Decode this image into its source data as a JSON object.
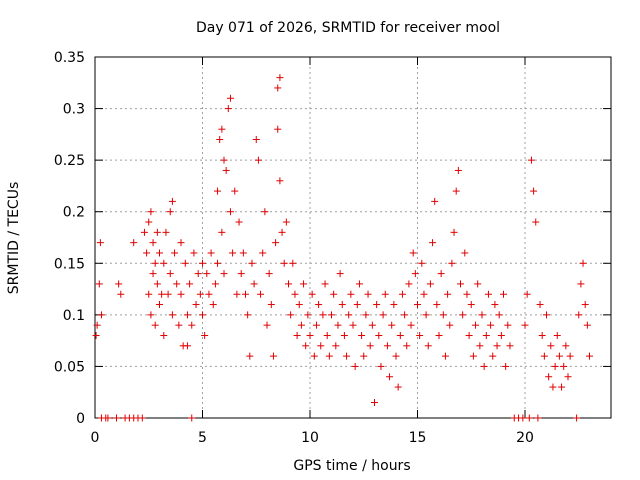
{
  "chart_data": {
    "type": "scatter",
    "title": "Day 071 of 2026, SRMTID for receiver mool",
    "xlabel": "GPS time / hours",
    "ylabel": "SRMTID / TECUs",
    "xlim": [
      0,
      24
    ],
    "ylim": [
      0,
      0.35
    ],
    "xticks": [
      0,
      5,
      10,
      15,
      20
    ],
    "xtick_labels": [
      "0",
      "5",
      "10",
      "15",
      "20"
    ],
    "yticks": [
      0,
      0.05,
      0.1,
      0.15,
      0.2,
      0.25,
      0.3,
      0.35
    ],
    "ytick_labels": [
      "0",
      "0.05",
      "0.1",
      "0.15",
      "0.2",
      "0.25",
      "0.3",
      "0.35"
    ],
    "grid": true,
    "marker": "+",
    "color": "#e00000",
    "series": [
      {
        "name": "SRMTID",
        "points": [
          [
            0.05,
            0.08
          ],
          [
            0.1,
            0.09
          ],
          [
            0.2,
            0.13
          ],
          [
            0.25,
            0.17
          ],
          [
            0.3,
            0.1
          ],
          [
            0.3,
            0.0
          ],
          [
            0.5,
            0.0
          ],
          [
            0.6,
            0.0
          ],
          [
            1.0,
            0.0
          ],
          [
            1.1,
            0.13
          ],
          [
            1.2,
            0.12
          ],
          [
            1.4,
            0.0
          ],
          [
            1.6,
            0.0
          ],
          [
            1.8,
            0.0
          ],
          [
            1.8,
            0.17
          ],
          [
            2.0,
            0.0
          ],
          [
            2.2,
            0.0
          ],
          [
            2.3,
            0.18
          ],
          [
            2.4,
            0.16
          ],
          [
            2.5,
            0.19
          ],
          [
            2.5,
            0.12
          ],
          [
            2.6,
            0.2
          ],
          [
            2.6,
            0.1
          ],
          [
            2.7,
            0.17
          ],
          [
            2.7,
            0.14
          ],
          [
            2.8,
            0.15
          ],
          [
            2.8,
            0.09
          ],
          [
            2.9,
            0.18
          ],
          [
            2.9,
            0.13
          ],
          [
            3.0,
            0.16
          ],
          [
            3.0,
            0.11
          ],
          [
            3.1,
            0.12
          ],
          [
            3.2,
            0.15
          ],
          [
            3.2,
            0.08
          ],
          [
            3.3,
            0.18
          ],
          [
            3.4,
            0.12
          ],
          [
            3.5,
            0.2
          ],
          [
            3.5,
            0.14
          ],
          [
            3.6,
            0.21
          ],
          [
            3.6,
            0.1
          ],
          [
            3.7,
            0.16
          ],
          [
            3.8,
            0.13
          ],
          [
            3.9,
            0.09
          ],
          [
            4.0,
            0.17
          ],
          [
            4.0,
            0.12
          ],
          [
            4.1,
            0.07
          ],
          [
            4.2,
            0.15
          ],
          [
            4.3,
            0.1
          ],
          [
            4.3,
            0.07
          ],
          [
            4.4,
            0.13
          ],
          [
            4.5,
            0.09
          ],
          [
            4.5,
            0.0
          ],
          [
            4.6,
            0.16
          ],
          [
            4.7,
            0.11
          ],
          [
            4.8,
            0.14
          ],
          [
            4.9,
            0.12
          ],
          [
            5.0,
            0.15
          ],
          [
            5.0,
            0.1
          ],
          [
            5.1,
            0.08
          ],
          [
            5.2,
            0.14
          ],
          [
            5.3,
            0.12
          ],
          [
            5.4,
            0.16
          ],
          [
            5.5,
            0.11
          ],
          [
            5.6,
            0.13
          ],
          [
            5.7,
            0.15
          ],
          [
            5.7,
            0.22
          ],
          [
            5.8,
            0.27
          ],
          [
            5.9,
            0.28
          ],
          [
            5.9,
            0.18
          ],
          [
            6.0,
            0.25
          ],
          [
            6.0,
            0.14
          ],
          [
            6.1,
            0.24
          ],
          [
            6.2,
            0.3
          ],
          [
            6.3,
            0.31
          ],
          [
            6.3,
            0.2
          ],
          [
            6.4,
            0.16
          ],
          [
            6.5,
            0.22
          ],
          [
            6.6,
            0.12
          ],
          [
            6.7,
            0.19
          ],
          [
            6.8,
            0.14
          ],
          [
            6.9,
            0.16
          ],
          [
            7.0,
            0.12
          ],
          [
            7.1,
            0.1
          ],
          [
            7.2,
            0.06
          ],
          [
            7.3,
            0.15
          ],
          [
            7.4,
            0.13
          ],
          [
            7.5,
            0.27
          ],
          [
            7.6,
            0.25
          ],
          [
            7.7,
            0.12
          ],
          [
            7.8,
            0.16
          ],
          [
            7.9,
            0.2
          ],
          [
            8.0,
            0.09
          ],
          [
            8.1,
            0.14
          ],
          [
            8.2,
            0.11
          ],
          [
            8.3,
            0.06
          ],
          [
            8.4,
            0.17
          ],
          [
            8.5,
            0.28
          ],
          [
            8.5,
            0.32
          ],
          [
            8.6,
            0.33
          ],
          [
            8.6,
            0.23
          ],
          [
            8.7,
            0.18
          ],
          [
            8.8,
            0.15
          ],
          [
            8.9,
            0.19
          ],
          [
            9.0,
            0.13
          ],
          [
            9.1,
            0.1
          ],
          [
            9.2,
            0.15
          ],
          [
            9.3,
            0.12
          ],
          [
            9.4,
            0.08
          ],
          [
            9.5,
            0.11
          ],
          [
            9.6,
            0.09
          ],
          [
            9.7,
            0.13
          ],
          [
            9.8,
            0.07
          ],
          [
            9.9,
            0.1
          ],
          [
            10.0,
            0.08
          ],
          [
            10.1,
            0.12
          ],
          [
            10.2,
            0.06
          ],
          [
            10.3,
            0.09
          ],
          [
            10.4,
            0.11
          ],
          [
            10.5,
            0.07
          ],
          [
            10.6,
            0.1
          ],
          [
            10.7,
            0.13
          ],
          [
            10.8,
            0.08
          ],
          [
            10.9,
            0.06
          ],
          [
            11.0,
            0.1
          ],
          [
            11.1,
            0.12
          ],
          [
            11.2,
            0.07
          ],
          [
            11.3,
            0.09
          ],
          [
            11.4,
            0.14
          ],
          [
            11.5,
            0.11
          ],
          [
            11.6,
            0.08
          ],
          [
            11.7,
            0.06
          ],
          [
            11.8,
            0.1
          ],
          [
            11.9,
            0.12
          ],
          [
            12.0,
            0.09
          ],
          [
            12.1,
            0.05
          ],
          [
            12.2,
            0.11
          ],
          [
            12.3,
            0.13
          ],
          [
            12.4,
            0.08
          ],
          [
            12.5,
            0.06
          ],
          [
            12.6,
            0.1
          ],
          [
            12.7,
            0.12
          ],
          [
            12.8,
            0.07
          ],
          [
            12.9,
            0.09
          ],
          [
            13.0,
            0.015
          ],
          [
            13.1,
            0.11
          ],
          [
            13.2,
            0.08
          ],
          [
            13.3,
            0.05
          ],
          [
            13.4,
            0.1
          ],
          [
            13.5,
            0.12
          ],
          [
            13.6,
            0.07
          ],
          [
            13.7,
            0.04
          ],
          [
            13.8,
            0.09
          ],
          [
            13.9,
            0.11
          ],
          [
            14.0,
            0.06
          ],
          [
            14.1,
            0.03
          ],
          [
            14.2,
            0.08
          ],
          [
            14.3,
            0.12
          ],
          [
            14.4,
            0.1
          ],
          [
            14.5,
            0.07
          ],
          [
            14.6,
            0.13
          ],
          [
            14.7,
            0.09
          ],
          [
            14.8,
            0.16
          ],
          [
            14.9,
            0.14
          ],
          [
            15.0,
            0.11
          ],
          [
            15.1,
            0.08
          ],
          [
            15.2,
            0.15
          ],
          [
            15.3,
            0.12
          ],
          [
            15.4,
            0.1
          ],
          [
            15.5,
            0.07
          ],
          [
            15.6,
            0.13
          ],
          [
            15.7,
            0.17
          ],
          [
            15.8,
            0.21
          ],
          [
            15.9,
            0.11
          ],
          [
            16.0,
            0.08
          ],
          [
            16.1,
            0.14
          ],
          [
            16.2,
            0.1
          ],
          [
            16.3,
            0.06
          ],
          [
            16.4,
            0.12
          ],
          [
            16.5,
            0.09
          ],
          [
            16.6,
            0.15
          ],
          [
            16.7,
            0.18
          ],
          [
            16.8,
            0.22
          ],
          [
            16.9,
            0.24
          ],
          [
            17.0,
            0.13
          ],
          [
            17.1,
            0.1
          ],
          [
            17.2,
            0.16
          ],
          [
            17.3,
            0.12
          ],
          [
            17.4,
            0.08
          ],
          [
            17.5,
            0.11
          ],
          [
            17.6,
            0.06
          ],
          [
            17.7,
            0.09
          ],
          [
            17.8,
            0.13
          ],
          [
            17.9,
            0.07
          ],
          [
            18.0,
            0.1
          ],
          [
            18.1,
            0.05
          ],
          [
            18.2,
            0.08
          ],
          [
            18.3,
            0.12
          ],
          [
            18.4,
            0.09
          ],
          [
            18.5,
            0.06
          ],
          [
            18.6,
            0.11
          ],
          [
            18.7,
            0.07
          ],
          [
            18.8,
            0.1
          ],
          [
            18.9,
            0.08
          ],
          [
            19.0,
            0.12
          ],
          [
            19.1,
            0.05
          ],
          [
            19.2,
            0.09
          ],
          [
            19.3,
            0.07
          ],
          [
            19.5,
            0.0
          ],
          [
            19.7,
            0.0
          ],
          [
            19.9,
            0.0
          ],
          [
            20.0,
            0.09
          ],
          [
            20.1,
            0.12
          ],
          [
            20.2,
            0.0
          ],
          [
            20.3,
            0.25
          ],
          [
            20.4,
            0.22
          ],
          [
            20.5,
            0.19
          ],
          [
            20.6,
            0.0
          ],
          [
            20.7,
            0.11
          ],
          [
            20.8,
            0.08
          ],
          [
            20.9,
            0.06
          ],
          [
            21.0,
            0.1
          ],
          [
            21.1,
            0.04
          ],
          [
            21.2,
            0.07
          ],
          [
            21.3,
            0.03
          ],
          [
            21.4,
            0.05
          ],
          [
            21.5,
            0.08
          ],
          [
            21.6,
            0.06
          ],
          [
            21.7,
            0.03
          ],
          [
            21.8,
            0.05
          ],
          [
            21.9,
            0.07
          ],
          [
            22.0,
            0.04
          ],
          [
            22.1,
            0.06
          ],
          [
            22.4,
            0.0
          ],
          [
            22.5,
            0.1
          ],
          [
            22.6,
            0.13
          ],
          [
            22.7,
            0.15
          ],
          [
            22.8,
            0.11
          ],
          [
            22.9,
            0.09
          ],
          [
            23.0,
            0.06
          ]
        ]
      }
    ]
  }
}
